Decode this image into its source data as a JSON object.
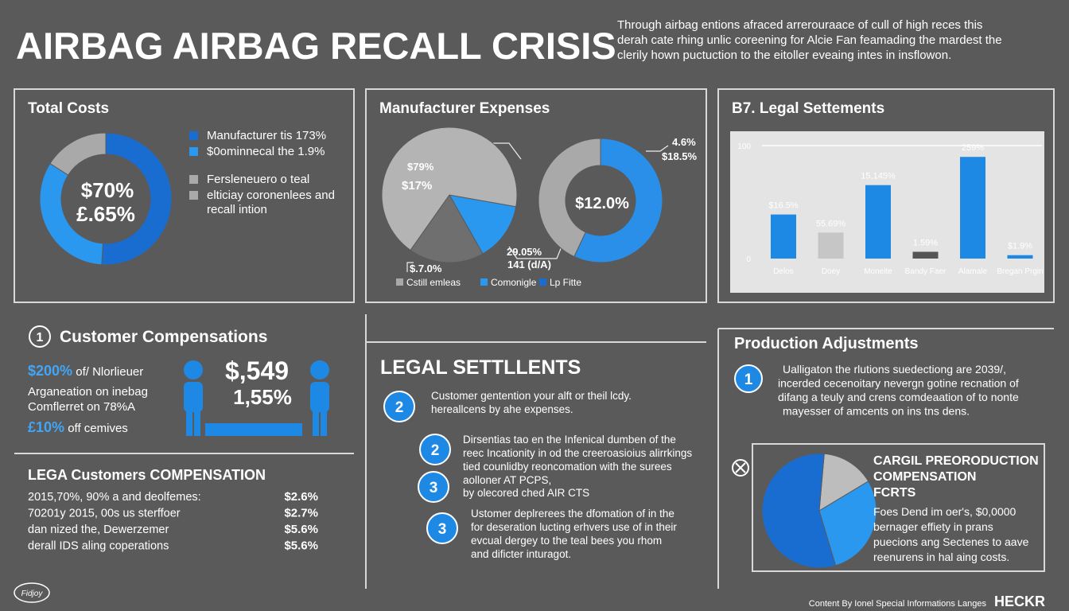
{
  "header": {
    "title": "AIRBAG AIRBAG RECALL CRISIS",
    "description": [
      "Through airbag entions afraced arrerouraace of cull of high reces this",
      "derah cate rhing unlic coreening for Alcie Fan feamading the mardest the",
      "clerily hown puctuction to the eitoller eveaing intes in insflowon."
    ]
  },
  "total_costs": {
    "title": "Total Costs",
    "chart": {
      "type": "donut",
      "values": [
        51,
        33,
        16
      ],
      "colors": [
        "#1a6dd0",
        "#2a98ef",
        "#a9a9a9"
      ]
    },
    "center_labels": [
      "$70%",
      "£.65%"
    ],
    "legend": [
      {
        "lines": [
          "Manufacturer tis 173%"
        ],
        "color": "#1a6dd0"
      },
      {
        "lines": [
          "$0ominnecal the 1.9%"
        ],
        "color": "#2a98ef"
      },
      {
        "lines": [
          "Fersleneuero o teal"
        ],
        "color": "#a9a9a9"
      },
      {
        "lines": [
          "elticiay coronenlees and",
          "recall intion"
        ],
        "color": "#a9a9a9"
      }
    ]
  },
  "manufacturer_expenses": {
    "title": "Manufacturer Expenses",
    "pie": {
      "type": "pie",
      "values": [
        14,
        18,
        68
      ],
      "colors": [
        "#2a98ef",
        "#6f6f6f",
        "#b4b4b4"
      ]
    },
    "pie_labels": [
      "$79%",
      "$17%",
      "$.7.0%",
      "29.05%",
      "141 (d/A)"
    ],
    "donut": {
      "type": "donut",
      "values": [
        57,
        43
      ],
      "colors": [
        "#2a8fe8",
        "#a9a9a9"
      ]
    },
    "donut_center": "$12.0%",
    "donut_labels": [
      "4.6%",
      "$18.5%"
    ],
    "legend": [
      {
        "label": "Cstill emleas",
        "color": "#a9a9a9"
      },
      {
        "label": "Comonigle",
        "color": "#2a98ef"
      },
      {
        "label": "Lp Fitte",
        "color": "#1a6dd0"
      }
    ]
  },
  "legal_chart": {
    "title": "B7. Legal Settements",
    "chart": {
      "type": "bar",
      "categories": [
        "Delos",
        "Doey",
        "Moneite",
        "Bandy Faer",
        "Alamale",
        "Bregan Prgin"
      ],
      "values": [
        39,
        23,
        65,
        6,
        90,
        3
      ],
      "colors": [
        "#1e88e5",
        "#c6c6c6",
        "#1e88e5",
        "#555555",
        "#1e88e5",
        "#1e88e5"
      ],
      "annotations": [
        "$16.5%",
        "55.69%",
        "15,145%",
        "1.59%",
        "259%",
        "$1.9%"
      ],
      "ylim": [
        0,
        100
      ],
      "yticks": [
        0,
        100
      ],
      "grid": true
    }
  },
  "customer_compensations": {
    "number": "1",
    "title": "Customer Compensations",
    "lines": [
      {
        "highlight": "$200%",
        "text": " of/ Nlorlieuer"
      },
      {
        "highlight": "",
        "text": "Arganeation on inebag"
      },
      {
        "highlight": "",
        "text": "Comflerret on 78%A"
      },
      {
        "highlight": "£10%",
        "text": " off cemives"
      }
    ],
    "big": [
      "$,549",
      "1,55%"
    ]
  },
  "lega_table": {
    "title": "LEGA Customers COMPENSATION",
    "rows": [
      [
        "2015,70%, 90% a and deolfemes:",
        "$2.6%"
      ],
      [
        "70201y 2015, 00s us sterffoer",
        "$2.7%"
      ],
      [
        "dan nized the, Dewerzemer",
        "$5.6%"
      ],
      [
        "derall IDS aling coperations",
        "$5.6%"
      ]
    ]
  },
  "legal_settlements": {
    "title": "LEGAL SETTLLENTS",
    "items": [
      {
        "number": "2",
        "lines": [
          "Customer gentention your alft or theil lcdy.",
          "hereallcens by ahe expenses."
        ]
      },
      {
        "number": "2",
        "lines": [
          "Dirsentias tao en the Infenical dumben of the",
          "reec Incationity in od the creeroasioius alirrkings",
          "tied counlidby reoncomation with the surees",
          "aolloner AT PCPS,"
        ]
      },
      {
        "number": "3",
        "lines": [
          "by olecored ched AIR CTS"
        ]
      },
      {
        "number": "3",
        "lines": [
          "Ustomer deplrerees the dfomation of in the",
          "for deseration lucting erhvers use of in their",
          "evcual dergey to the teal bees you rhom",
          "and dificter inturagot."
        ]
      }
    ]
  },
  "production": {
    "title": "Production Adjustments",
    "item": {
      "number": "1",
      "lines": [
        "Ualligaton the rlutions suedectiong are 2039/,",
        "incerded cecenoitary nevergn gotine recnation of",
        "difang a teuly and crens comdeaation of to nonte",
        "mayesser of amcents on ins tns dens."
      ]
    },
    "box": {
      "title": [
        "CARGIL PREORODUCTION",
        "COMPENSATION",
        "FCRTS"
      ],
      "pie": {
        "type": "pie",
        "values": [
          15,
          29,
          56
        ],
        "colors": [
          "#bdbdbd",
          "#2a98ef",
          "#1a6dd0"
        ]
      },
      "lines": [
        "Foes Dend im oer's, $0,0000",
        "bernager effiety in prans",
        "puecions ang Sectenes to aave",
        "reenurens in hal aing costs."
      ]
    }
  },
  "footer": {
    "logo": "Fidjoy",
    "credit": "Content By Ionel Special Informations Langes",
    "brand": "HECKR"
  }
}
